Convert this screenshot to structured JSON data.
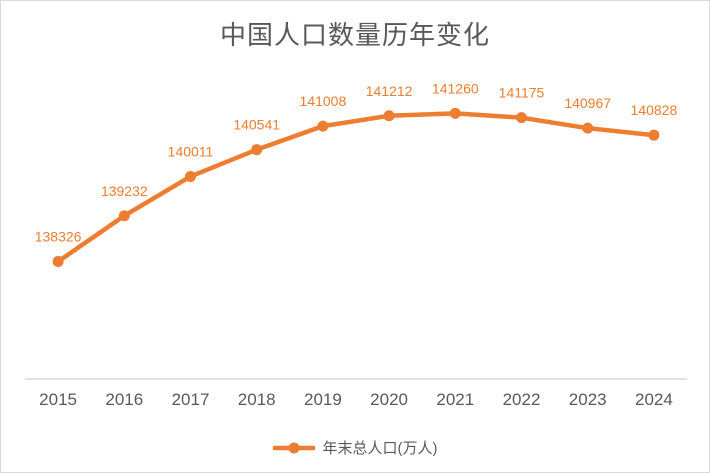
{
  "chart_data": {
    "type": "line",
    "title": "中国人口数量历年变化",
    "xlabel": "",
    "ylabel": "",
    "categories": [
      "2015",
      "2016",
      "2017",
      "2018",
      "2019",
      "2020",
      "2021",
      "2022",
      "2023",
      "2024"
    ],
    "series": [
      {
        "name": "年末总人口(万人)",
        "values": [
          138326,
          139232,
          140011,
          140541,
          141008,
          141212,
          141260,
          141175,
          140967,
          140828
        ],
        "color": "#ED7D31"
      }
    ],
    "ylim": [
      136000,
      142000
    ],
    "grid": false,
    "y_axis_visible": false,
    "x_axis_line_color": "#D9D9D9",
    "data_labels_visible": true,
    "data_label_color": "#ED7D31",
    "axis_text_color": "#595959",
    "title_color": "#595959",
    "legend_position": "bottom",
    "frame_border_color": "#D9D9D9"
  }
}
